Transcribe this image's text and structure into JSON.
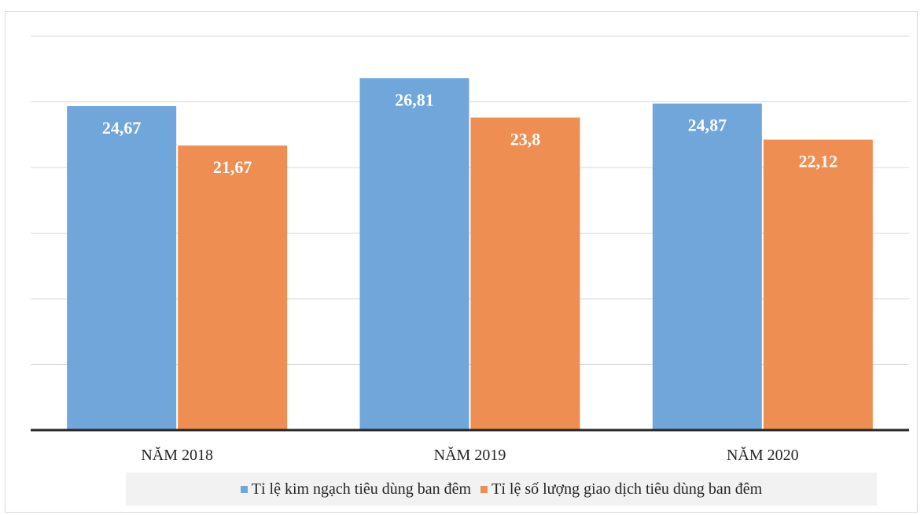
{
  "chart_data": {
    "type": "bar",
    "categories": [
      "NĂM 2018",
      "NĂM 2019",
      "NĂM 2020"
    ],
    "series": [
      {
        "name": "Tỉ lệ kim ngạch tiêu dùng ban đêm",
        "values": [
          24.67,
          26.81,
          24.87
        ],
        "labels": [
          "24,67",
          "26,81",
          "24,87"
        ],
        "color": "#70a6da"
      },
      {
        "name": "Tỉ lệ số lượng giao dịch tiêu dùng ban đêm",
        "values": [
          21.67,
          23.8,
          22.12
        ],
        "labels": [
          "21,67",
          "23,8",
          "22,12"
        ],
        "color": "#ef8e52"
      }
    ],
    "ylim": [
      0,
      30
    ],
    "grid": true,
    "legend": "bottom"
  }
}
